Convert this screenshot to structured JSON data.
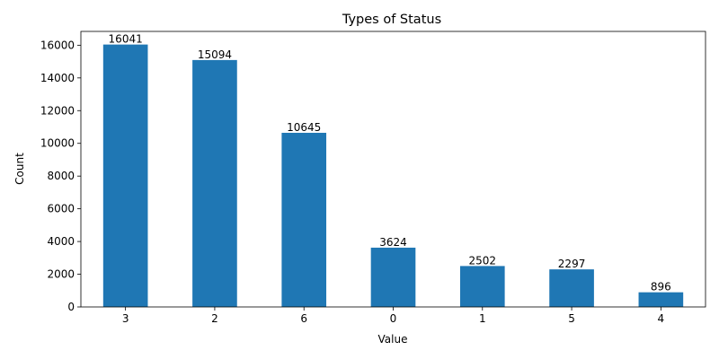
{
  "chart_data": {
    "type": "bar",
    "title": "Types of Status",
    "xlabel": "Value",
    "ylabel": "Count",
    "categories": [
      "3",
      "2",
      "6",
      "0",
      "1",
      "5",
      "4"
    ],
    "values": [
      16041,
      15094,
      10645,
      3624,
      2502,
      2297,
      896
    ],
    "ylim": [
      0,
      16843
    ],
    "yticks": [
      0,
      2000,
      4000,
      6000,
      8000,
      10000,
      12000,
      14000,
      16000
    ],
    "bar_color": "#1f77b4",
    "grid": false,
    "legend": "none"
  }
}
